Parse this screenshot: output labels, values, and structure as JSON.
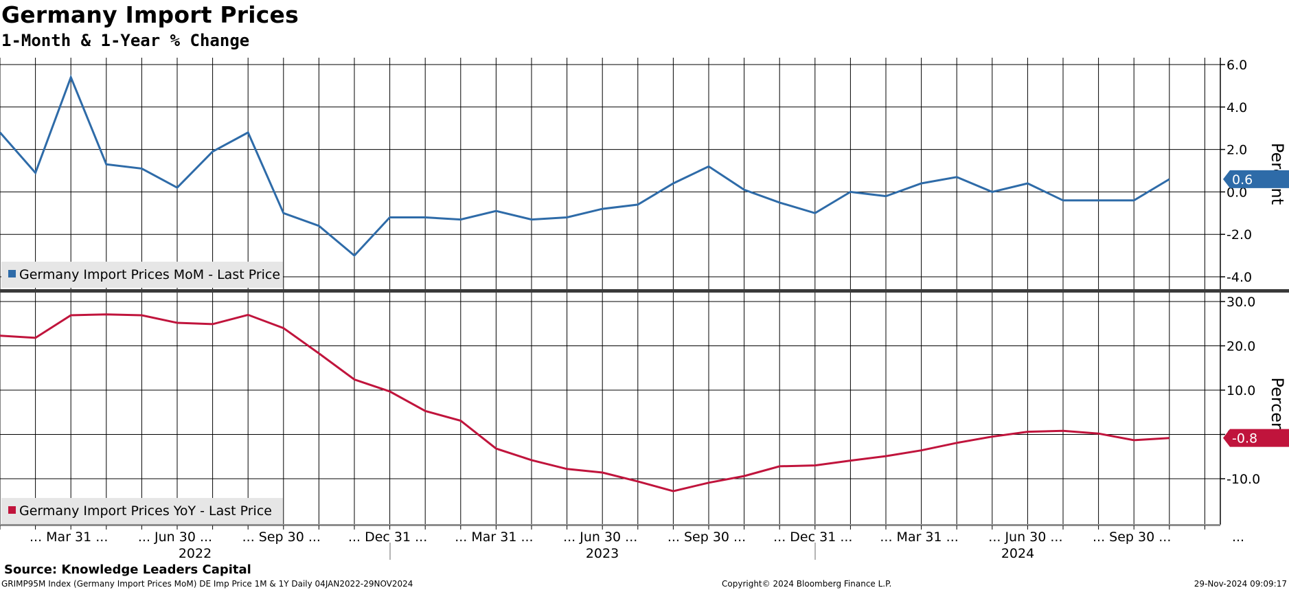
{
  "title": "Germany Import Prices",
  "subtitle": "1-Month & 1-Year % Change",
  "source": "Source: Knowledge Leaders Capital",
  "footer": {
    "index_info": "GRIMP95M Index (Germany Import Prices MoM) DE Imp Price 1M & 1Y  Daily 04JAN2022-29NOV2024",
    "copyright": "Copyright© 2024 Bloomberg Finance L.P.",
    "timestamp": "29-Nov-2024 09:09:17"
  },
  "x_axis": {
    "quarter_labels": [
      "... Mar 31 ...",
      "... Jun 30 ...",
      "... Sep 30 ...",
      "... Dec 31 ...",
      "... Mar 31 ...",
      "... Jun 30 ...",
      "... Sep 30 ...",
      "... Dec 31 ...",
      "... Mar 31 ...",
      "... Jun 30 ...",
      "... Sep 30 ...",
      "..."
    ],
    "year_labels": [
      "2022",
      "2023",
      "2024"
    ]
  },
  "chart_data": [
    {
      "type": "line",
      "ylabel": "Percent",
      "ylim": [
        -4.0,
        6.0
      ],
      "y_ticks": [
        "6.0",
        "4.0",
        "2.0",
        "0.0",
        "-2.0",
        "-4.0"
      ],
      "grid": true,
      "legend_position": "bottom-left",
      "last_value_label": "0.6",
      "x": [
        "Jan 2022",
        "Feb 2022",
        "Mar 2022",
        "Apr 2022",
        "May 2022",
        "Jun 2022",
        "Jul 2022",
        "Aug 2022",
        "Sep 2022",
        "Oct 2022",
        "Nov 2022",
        "Dec 2022",
        "Jan 2023",
        "Feb 2023",
        "Mar 2023",
        "Apr 2023",
        "May 2023",
        "Jun 2023",
        "Jul 2023",
        "Aug 2023",
        "Sep 2023",
        "Oct 2023",
        "Nov 2023",
        "Dec 2023",
        "Jan 2024",
        "Feb 2024",
        "Mar 2024",
        "Apr 2024",
        "May 2024",
        "Jun 2024",
        "Jul 2024",
        "Aug 2024",
        "Sep 2024",
        "Oct 2024"
      ],
      "series": [
        {
          "name": "Germany Import Prices MoM - Last Price",
          "color": "#2E6BA8",
          "values": [
            2.8,
            0.9,
            5.4,
            1.3,
            1.1,
            0.2,
            1.9,
            2.8,
            -1.0,
            -1.6,
            -3.0,
            -1.2,
            -1.2,
            -1.3,
            -0.9,
            -1.3,
            -1.2,
            -0.8,
            -0.6,
            0.4,
            1.2,
            0.1,
            -0.5,
            -1.0,
            0.0,
            -0.2,
            0.4,
            0.7,
            0.0,
            0.4,
            -0.4,
            -0.4,
            -0.4,
            0.6
          ]
        }
      ]
    },
    {
      "type": "line",
      "ylabel": "Percent",
      "ylim": [
        -20.0,
        33.0
      ],
      "y_ticks": [
        "30.0",
        "20.0",
        "10.0",
        "0.0",
        "-10.0"
      ],
      "grid": true,
      "legend_position": "bottom-left",
      "last_value_label": "-0.8",
      "x": [
        "Jan 2022",
        "Feb 2022",
        "Mar 2022",
        "Apr 2022",
        "May 2022",
        "Jun 2022",
        "Jul 2022",
        "Aug 2022",
        "Sep 2022",
        "Oct 2022",
        "Nov 2022",
        "Dec 2022",
        "Jan 2023",
        "Feb 2023",
        "Mar 2023",
        "Apr 2023",
        "May 2023",
        "Jun 2023",
        "Jul 2023",
        "Aug 2023",
        "Sep 2023",
        "Oct 2023",
        "Nov 2023",
        "Dec 2023",
        "Jan 2024",
        "Feb 2024",
        "Mar 2024",
        "Apr 2024",
        "May 2024",
        "Jun 2024",
        "Jul 2024",
        "Aug 2024",
        "Sep 2024",
        "Oct 2024"
      ],
      "series": [
        {
          "name": "Germany Import Prices YoY - Last Price",
          "color": "#C0143C",
          "values": [
            22.3,
            21.8,
            26.9,
            27.1,
            26.9,
            25.2,
            24.9,
            27.0,
            24.0,
            18.3,
            12.4,
            9.7,
            5.3,
            3.1,
            -3.2,
            -5.8,
            -7.8,
            -8.6,
            -10.6,
            -12.8,
            -10.9,
            -9.4,
            -7.2,
            -7.0,
            -5.9,
            -4.9,
            -3.6,
            -1.9,
            -0.5,
            0.6,
            0.8,
            0.2,
            -1.3,
            -0.8
          ]
        }
      ]
    }
  ]
}
